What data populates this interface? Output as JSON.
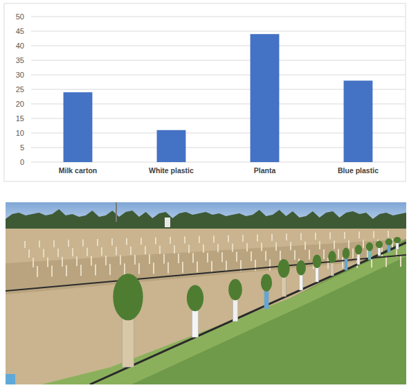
{
  "chart_data": {
    "type": "bar",
    "categories": [
      "Milk carton",
      "White plastic",
      "Planta",
      "Blue plastic"
    ],
    "values": [
      24,
      11,
      44,
      28
    ],
    "color": "#4472c4",
    "ylim": [
      0,
      50
    ],
    "yticks": [
      0,
      5,
      10,
      15,
      20,
      25,
      30,
      35,
      40,
      45,
      50
    ],
    "grid": true
  }
}
